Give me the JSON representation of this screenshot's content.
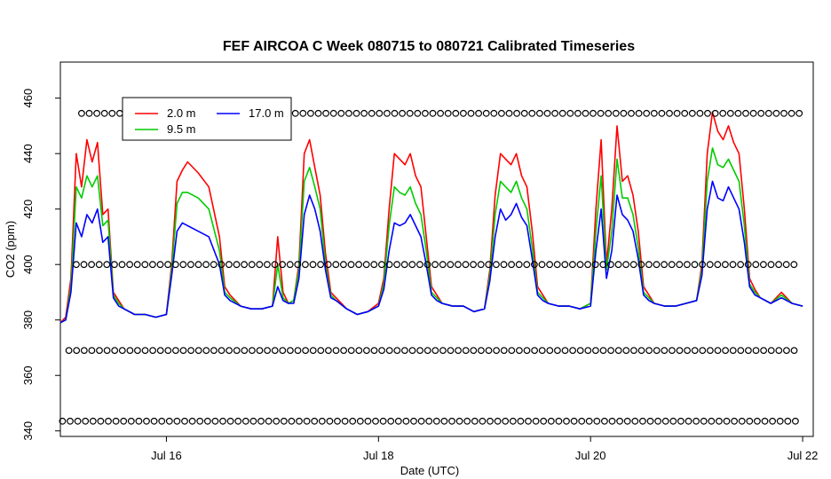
{
  "chart_data": {
    "type": "line",
    "title": "FEF AIRCOA C  Week 080715 to 080721  Calibrated Timeseries",
    "xlabel": "Date (UTC)",
    "ylabel": "CO2 (ppm)",
    "xlim": [
      15.0,
      22.1
    ],
    "ylim": [
      338,
      473
    ],
    "x_ticks": [
      {
        "x": 16.0,
        "label": "Jul 16"
      },
      {
        "x": 18.0,
        "label": "Jul 18"
      },
      {
        "x": 20.0,
        "label": "Jul 20"
      },
      {
        "x": 22.0,
        "label": "Jul 22"
      }
    ],
    "y_ticks": [
      340,
      360,
      380,
      400,
      420,
      440,
      460
    ],
    "legend": {
      "position": "top-left",
      "entries": [
        {
          "label": "2.0 m",
          "color": "#ff0000"
        },
        {
          "label": "17.0 m",
          "color": "#0000ff"
        },
        {
          "label": "9.5 m",
          "color": "#00cc00"
        }
      ]
    },
    "series": [
      {
        "name": "2.0 m",
        "color": "#ff0000",
        "x": [
          15.0,
          15.05,
          15.1,
          15.15,
          15.2,
          15.25,
          15.3,
          15.35,
          15.4,
          15.45,
          15.5,
          15.55,
          15.6,
          15.7,
          15.8,
          15.9,
          16.0,
          16.05,
          16.1,
          16.15,
          16.2,
          16.3,
          16.4,
          16.5,
          16.55,
          16.6,
          16.7,
          16.8,
          16.9,
          17.0,
          17.05,
          17.1,
          17.15,
          17.2,
          17.25,
          17.3,
          17.35,
          17.4,
          17.45,
          17.5,
          17.55,
          17.6,
          17.7,
          17.8,
          17.9,
          18.0,
          18.05,
          18.1,
          18.15,
          18.2,
          18.25,
          18.3,
          18.35,
          18.4,
          18.45,
          18.5,
          18.55,
          18.6,
          18.7,
          18.8,
          18.9,
          19.0,
          19.05,
          19.1,
          19.15,
          19.2,
          19.25,
          19.3,
          19.35,
          19.4,
          19.45,
          19.5,
          19.55,
          19.6,
          19.7,
          19.8,
          19.9,
          20.0,
          20.05,
          20.1,
          20.15,
          20.2,
          20.25,
          20.3,
          20.35,
          20.4,
          20.45,
          20.5,
          20.55,
          20.6,
          20.7,
          20.8,
          20.9,
          21.0,
          21.05,
          21.1,
          21.15,
          21.2,
          21.25,
          21.3,
          21.35,
          21.4,
          21.45,
          21.5,
          21.55,
          21.6,
          21.7,
          21.8,
          21.9,
          22.0
        ],
        "values": [
          379,
          381,
          395,
          440,
          428,
          445,
          437,
          444,
          418,
          420,
          390,
          387,
          384,
          382,
          382,
          381,
          382,
          400,
          430,
          434,
          437,
          433,
          428,
          410,
          392,
          389,
          385,
          384,
          384,
          385,
          410,
          390,
          386,
          387,
          400,
          440,
          445,
          435,
          425,
          404,
          390,
          388,
          384,
          382,
          383,
          386,
          395,
          420,
          440,
          438,
          436,
          440,
          432,
          428,
          410,
          392,
          389,
          386,
          385,
          385,
          383,
          384,
          398,
          425,
          440,
          438,
          436,
          440,
          432,
          428,
          412,
          392,
          389,
          386,
          385,
          385,
          384,
          386,
          420,
          445,
          400,
          420,
          450,
          430,
          432,
          425,
          412,
          392,
          389,
          386,
          385,
          385,
          386,
          387,
          400,
          440,
          455,
          448,
          445,
          450,
          444,
          440,
          420,
          395,
          391,
          388,
          386,
          390,
          386,
          385
        ]
      },
      {
        "name": "9.5 m",
        "color": "#00cc00",
        "x": [
          15.0,
          15.05,
          15.1,
          15.15,
          15.2,
          15.25,
          15.3,
          15.35,
          15.4,
          15.45,
          15.5,
          15.55,
          15.6,
          15.7,
          15.8,
          15.9,
          16.0,
          16.05,
          16.1,
          16.15,
          16.2,
          16.3,
          16.4,
          16.5,
          16.55,
          16.6,
          16.7,
          16.8,
          16.9,
          17.0,
          17.05,
          17.1,
          17.15,
          17.2,
          17.25,
          17.3,
          17.35,
          17.4,
          17.45,
          17.5,
          17.55,
          17.6,
          17.7,
          17.8,
          17.9,
          18.0,
          18.05,
          18.1,
          18.15,
          18.2,
          18.25,
          18.3,
          18.35,
          18.4,
          18.45,
          18.5,
          18.55,
          18.6,
          18.7,
          18.8,
          18.9,
          19.0,
          19.05,
          19.1,
          19.15,
          19.2,
          19.25,
          19.3,
          19.35,
          19.4,
          19.45,
          19.5,
          19.55,
          19.6,
          19.7,
          19.8,
          19.9,
          20.0,
          20.05,
          20.1,
          20.15,
          20.2,
          20.25,
          20.3,
          20.35,
          20.4,
          20.45,
          20.5,
          20.55,
          20.6,
          20.7,
          20.8,
          20.9,
          21.0,
          21.05,
          21.1,
          21.15,
          21.2,
          21.25,
          21.3,
          21.35,
          21.4,
          21.45,
          21.5,
          21.55,
          21.6,
          21.7,
          21.8,
          21.9,
          22.0
        ],
        "values": [
          379,
          380,
          392,
          428,
          424,
          432,
          428,
          432,
          414,
          416,
          389,
          386,
          384,
          382,
          382,
          381,
          382,
          398,
          422,
          426,
          426,
          424,
          420,
          405,
          390,
          388,
          385,
          384,
          384,
          385,
          400,
          388,
          386,
          387,
          398,
          430,
          435,
          428,
          420,
          400,
          389,
          387,
          384,
          382,
          383,
          385,
          393,
          414,
          428,
          426,
          425,
          428,
          422,
          418,
          405,
          390,
          388,
          386,
          385,
          385,
          383,
          384,
          396,
          418,
          430,
          428,
          426,
          430,
          424,
          420,
          406,
          390,
          388,
          386,
          385,
          385,
          384,
          386,
          412,
          432,
          398,
          412,
          438,
          424,
          424,
          418,
          406,
          390,
          388,
          386,
          385,
          385,
          386,
          387,
          398,
          430,
          442,
          436,
          435,
          438,
          434,
          430,
          414,
          393,
          390,
          388,
          386,
          389,
          386,
          385
        ]
      },
      {
        "name": "17.0 m",
        "color": "#0000ff",
        "x": [
          15.0,
          15.05,
          15.1,
          15.15,
          15.2,
          15.25,
          15.3,
          15.35,
          15.4,
          15.45,
          15.5,
          15.55,
          15.6,
          15.7,
          15.8,
          15.9,
          16.0,
          16.05,
          16.1,
          16.15,
          16.2,
          16.3,
          16.4,
          16.5,
          16.55,
          16.6,
          16.7,
          16.8,
          16.9,
          17.0,
          17.05,
          17.1,
          17.15,
          17.2,
          17.25,
          17.3,
          17.35,
          17.4,
          17.45,
          17.5,
          17.55,
          17.6,
          17.7,
          17.8,
          17.9,
          18.0,
          18.05,
          18.1,
          18.15,
          18.2,
          18.25,
          18.3,
          18.35,
          18.4,
          18.45,
          18.5,
          18.55,
          18.6,
          18.7,
          18.8,
          18.9,
          19.0,
          19.05,
          19.1,
          19.15,
          19.2,
          19.25,
          19.3,
          19.35,
          19.4,
          19.45,
          19.5,
          19.55,
          19.6,
          19.7,
          19.8,
          19.9,
          20.0,
          20.05,
          20.1,
          20.15,
          20.2,
          20.25,
          20.3,
          20.35,
          20.4,
          20.45,
          20.5,
          20.55,
          20.6,
          20.7,
          20.8,
          20.9,
          21.0,
          21.05,
          21.1,
          21.15,
          21.2,
          21.25,
          21.3,
          21.35,
          21.4,
          21.45,
          21.5,
          21.55,
          21.6,
          21.7,
          21.8,
          21.9,
          22.0
        ],
        "values": [
          379,
          380,
          390,
          415,
          410,
          418,
          415,
          420,
          408,
          410,
          388,
          385,
          384,
          382,
          382,
          381,
          382,
          396,
          412,
          415,
          414,
          412,
          410,
          400,
          389,
          387,
          385,
          384,
          384,
          385,
          392,
          387,
          386,
          386,
          395,
          418,
          425,
          420,
          412,
          398,
          388,
          387,
          384,
          382,
          383,
          385,
          391,
          405,
          415,
          414,
          415,
          418,
          414,
          410,
          400,
          389,
          387,
          386,
          385,
          385,
          383,
          384,
          394,
          410,
          420,
          416,
          418,
          422,
          417,
          414,
          402,
          389,
          387,
          386,
          385,
          385,
          384,
          385,
          405,
          420,
          395,
          405,
          425,
          418,
          416,
          412,
          402,
          389,
          387,
          386,
          385,
          385,
          386,
          387,
          396,
          420,
          430,
          424,
          423,
          428,
          424,
          420,
          408,
          392,
          389,
          388,
          386,
          388,
          386,
          385
        ]
      }
    ],
    "calibration_markers": [
      {
        "name": "marker-row-454",
        "y": 454.5,
        "x_start": 15.2,
        "x_end": 21.98,
        "spacing": 0.072
      },
      {
        "name": "marker-row-400",
        "y": 400,
        "x_start": 15.15,
        "x_end": 21.98,
        "spacing": 0.072
      },
      {
        "name": "marker-row-369",
        "y": 369,
        "x_start": 15.08,
        "x_end": 21.98,
        "spacing": 0.072
      },
      {
        "name": "marker-row-343",
        "y": 343.5,
        "x_start": 15.02,
        "x_end": 21.98,
        "spacing": 0.072
      }
    ]
  }
}
